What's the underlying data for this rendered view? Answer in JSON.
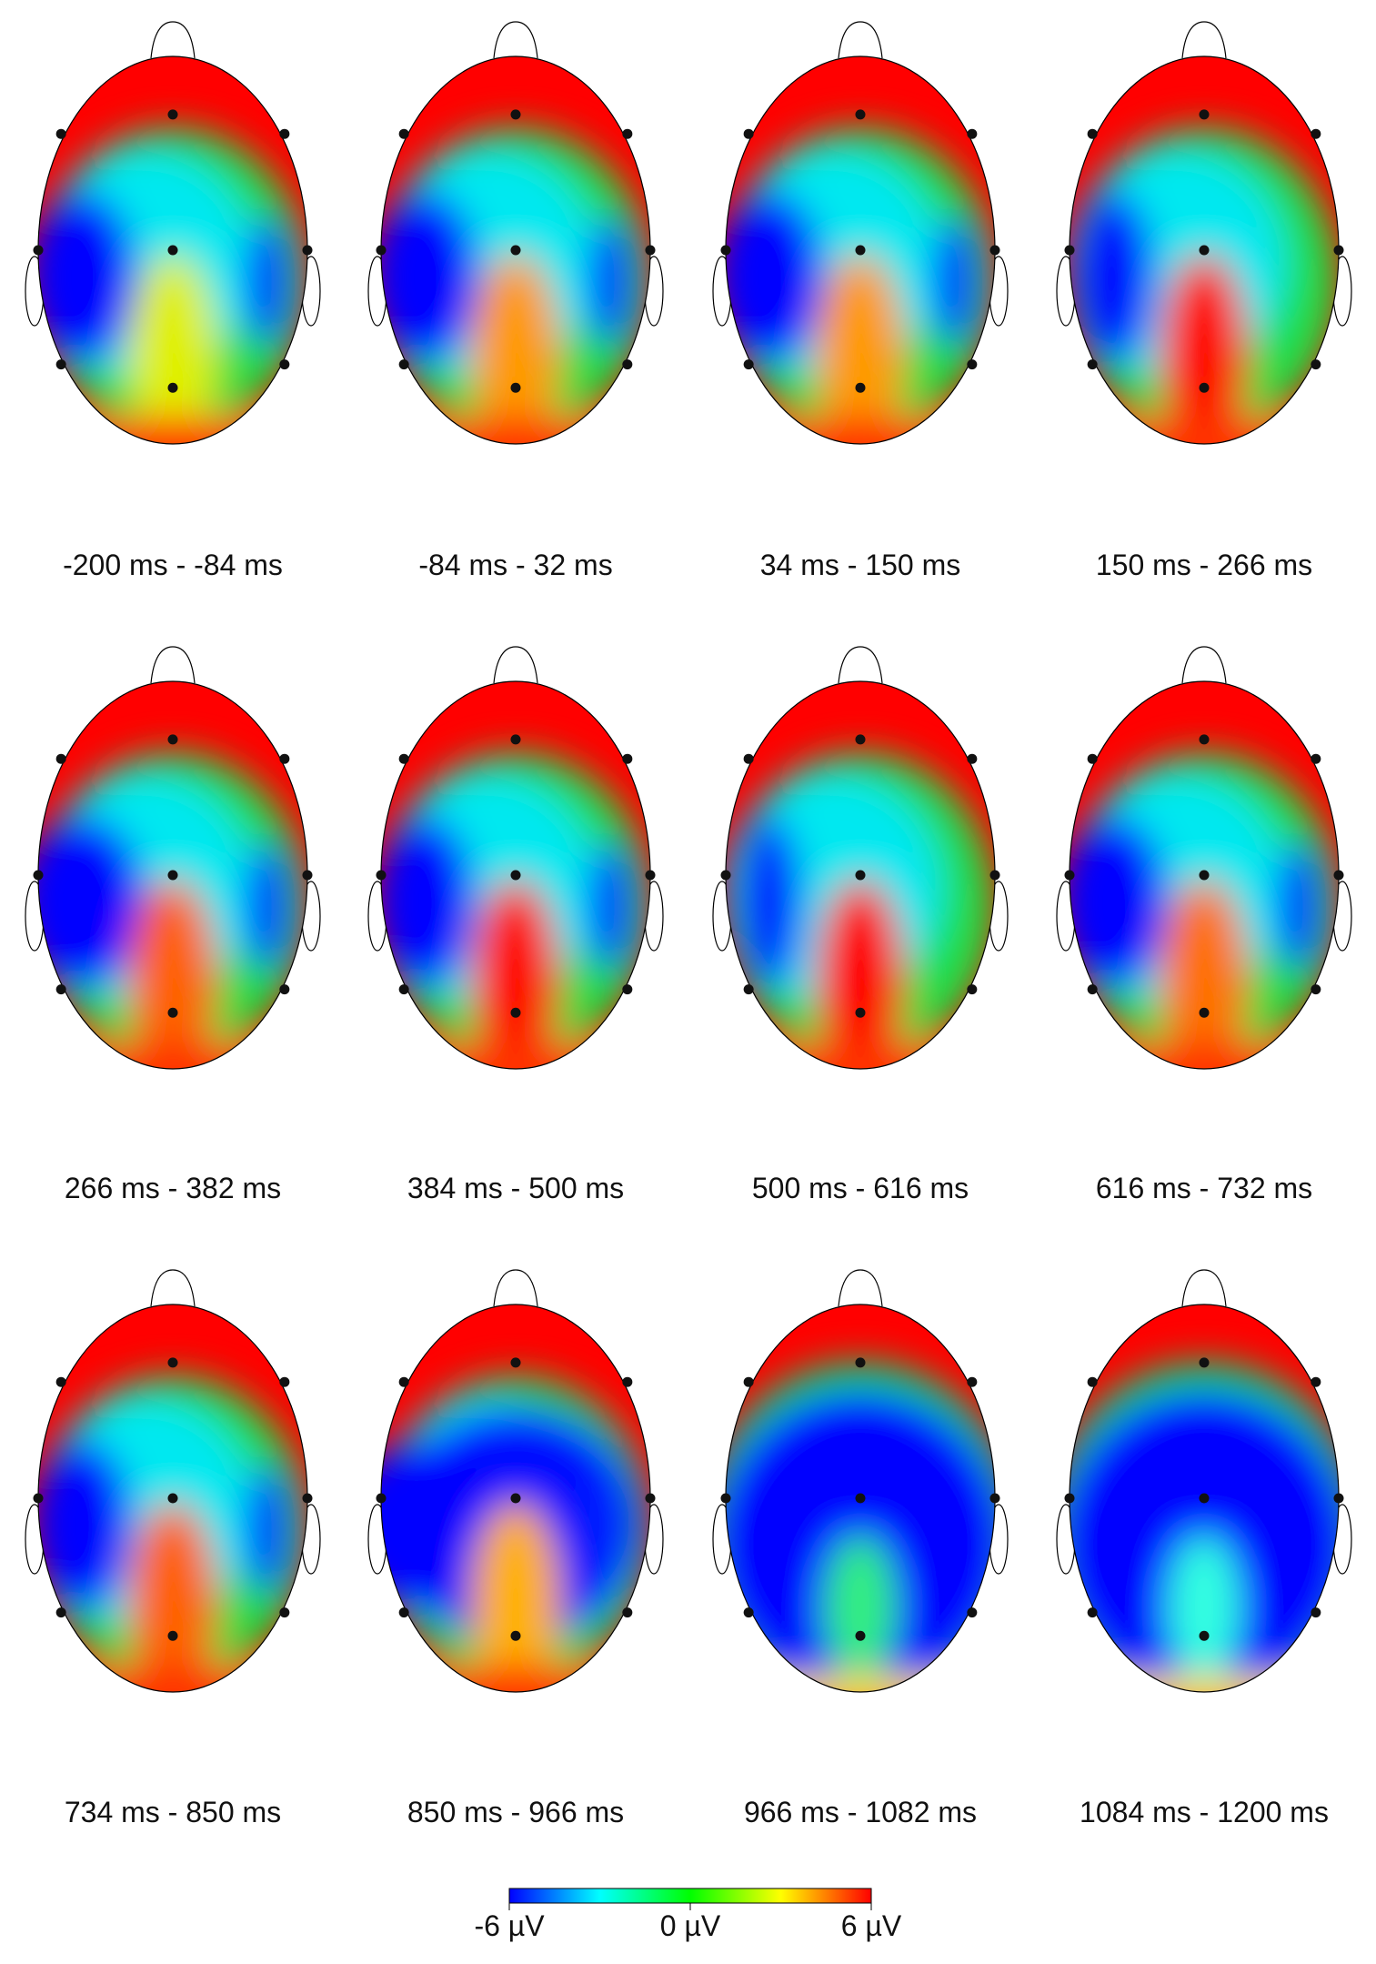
{
  "panels": [
    {
      "label": "-200 ms - -84 ms"
    },
    {
      "label": "-84 ms - 32 ms"
    },
    {
      "label": "34 ms - 150 ms"
    },
    {
      "label": "150 ms - 266 ms"
    },
    {
      "label": "266 ms - 382 ms"
    },
    {
      "label": "384 ms - 500 ms"
    },
    {
      "label": "500 ms - 616 ms"
    },
    {
      "label": "616 ms - 732 ms"
    },
    {
      "label": "734 ms - 850 ms"
    },
    {
      "label": "850 ms - 966 ms"
    },
    {
      "label": "966 ms - 1082 ms"
    },
    {
      "label": "1084 ms - 1200 ms"
    }
  ],
  "colorbar": {
    "labels": [
      "-6 µV",
      "0 µV",
      "6 µV"
    ]
  }
}
